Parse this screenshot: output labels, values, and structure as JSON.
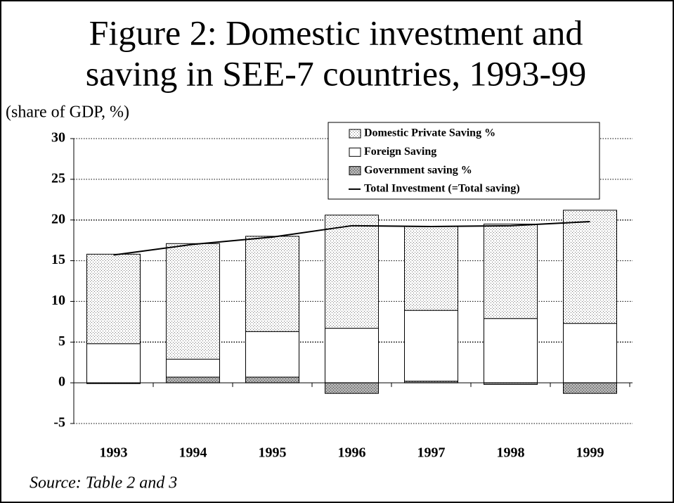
{
  "chart_data": {
    "type": "bar",
    "title": [
      "Figure 2:  Domestic investment and",
      "saving in SEE-7 countries, 1993-99"
    ],
    "y_label": "(share of GDP, %)",
    "source": "Source: Table 2 and 3",
    "categories": [
      "1993",
      "1994",
      "1995",
      "1996",
      "1997",
      "1998",
      "1999"
    ],
    "series": [
      {
        "name": "Domestic Private Saving %",
        "type": "bar",
        "color": "#c8c8c8",
        "pattern": "dots",
        "values": [
          11.0,
          14.2,
          11.7,
          13.9,
          10.3,
          11.6,
          13.9
        ]
      },
      {
        "name": "Foreign Saving",
        "type": "bar",
        "color": "#ffffff",
        "values": [
          4.8,
          2.2,
          5.6,
          6.7,
          8.7,
          7.9,
          7.3
        ]
      },
      {
        "name": "Government saving %",
        "type": "bar",
        "color": "#909090",
        "pattern": "dots",
        "values": [
          -0.1,
          0.7,
          0.7,
          -1.3,
          0.2,
          -0.2,
          -1.3
        ]
      },
      {
        "name": "Total Investment (=Total saving)",
        "type": "line",
        "color": "#000000",
        "values": [
          15.7,
          17.0,
          17.9,
          19.3,
          19.2,
          19.3,
          19.8
        ]
      }
    ],
    "ylim": [
      -5,
      30
    ],
    "yticks": [
      -5,
      0,
      5,
      10,
      15,
      20,
      25,
      30
    ],
    "grid": true
  }
}
